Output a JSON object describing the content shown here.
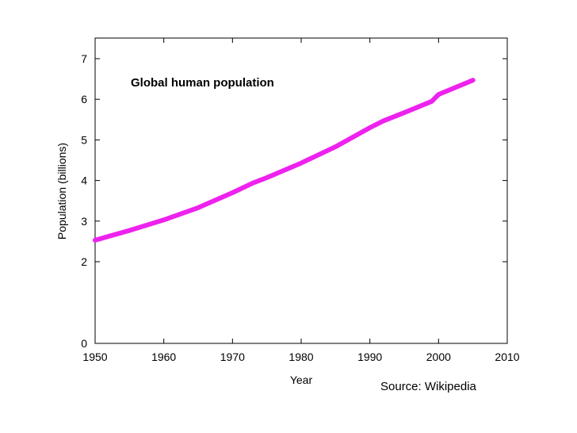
{
  "chart_data": {
    "type": "line",
    "title": "Global human population",
    "xlabel": "Year",
    "ylabel": "Population (billions)",
    "xlim": [
      1950,
      2010
    ],
    "ylim": [
      0,
      7
    ],
    "x_ticks": [
      1950,
      1960,
      1970,
      1980,
      1990,
      2000,
      2010
    ],
    "y_ticks": [
      0,
      2,
      3,
      4,
      5,
      6,
      7
    ],
    "y_axis_scale": "non-linear (gap between 0 and 2)",
    "grid": false,
    "series": [
      {
        "color": "#ee22ee",
        "x": [
          1950,
          1955,
          1960,
          1965,
          1970,
          1973,
          1975,
          1980,
          1985,
          1990,
          1992,
          1995,
          1999,
          2000,
          2005
        ],
        "values": [
          2.53,
          2.77,
          3.03,
          3.33,
          3.7,
          3.94,
          4.07,
          4.43,
          4.83,
          5.3,
          5.47,
          5.67,
          5.95,
          6.12,
          6.47
        ]
      }
    ]
  },
  "source_note": "Source: Wikipedia"
}
